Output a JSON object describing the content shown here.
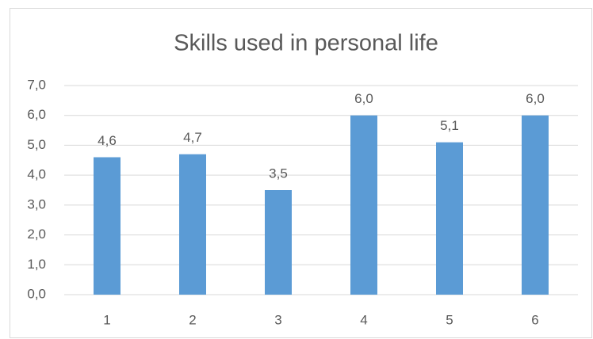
{
  "chart_data": {
    "type": "bar",
    "title": "Skills used in personal life",
    "categories": [
      "1",
      "2",
      "3",
      "4",
      "5",
      "6"
    ],
    "values": [
      4.6,
      4.7,
      3.5,
      6.0,
      5.1,
      6.0
    ],
    "value_labels": [
      "4,6",
      "4,7",
      "3,5",
      "6,0",
      "5,1",
      "6,0"
    ],
    "color": "#5b9bd5",
    "ylim": [
      0,
      7
    ],
    "yticks": [
      {
        "value": 0,
        "label": "0,0"
      },
      {
        "value": 1,
        "label": "1,0"
      },
      {
        "value": 2,
        "label": "2,0"
      },
      {
        "value": 3,
        "label": "3,0"
      },
      {
        "value": 4,
        "label": "4,0"
      },
      {
        "value": 5,
        "label": "5,0"
      },
      {
        "value": 6,
        "label": "6,0"
      },
      {
        "value": 7,
        "label": "7,0"
      }
    ],
    "grid": true
  }
}
